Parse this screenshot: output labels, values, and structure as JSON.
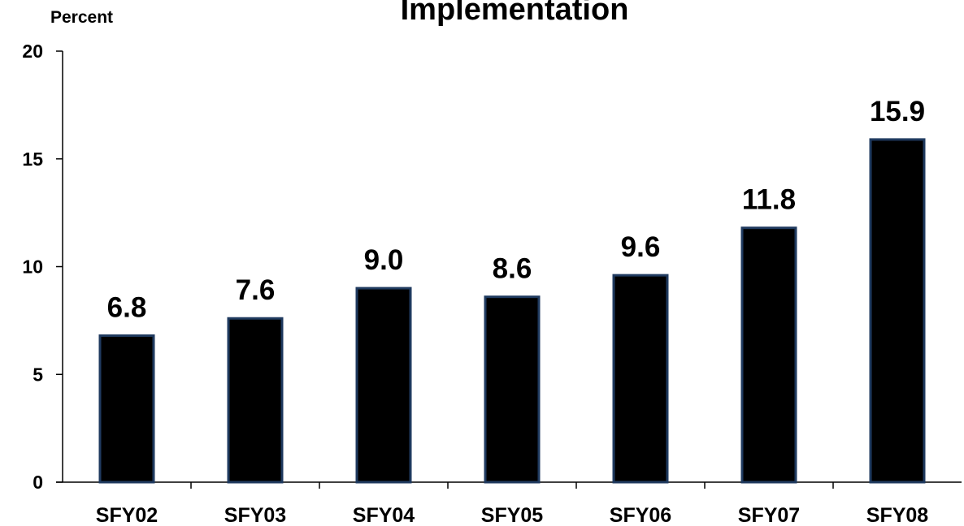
{
  "chart_data": {
    "type": "bar",
    "title": "Implementation",
    "ylabel": "Percent",
    "xlabel": "",
    "categories": [
      "SFY02",
      "SFY03",
      "SFY04",
      "SFY05",
      "SFY06",
      "SFY07",
      "SFY08"
    ],
    "values": [
      6.8,
      7.6,
      9.0,
      8.6,
      9.6,
      11.8,
      15.9
    ],
    "value_labels": [
      "6.8",
      "7.6",
      "9.0",
      "8.6",
      "9.6",
      "11.8",
      "15.9"
    ],
    "ylim": [
      0,
      20
    ],
    "yticks": [
      0,
      5,
      10,
      15,
      20
    ],
    "ytick_labels": [
      "0",
      "5",
      "10",
      "15",
      "20"
    ],
    "grid": false,
    "legend": "none",
    "bar_fill": "#000000",
    "bar_stroke": "#1f3a5f"
  }
}
